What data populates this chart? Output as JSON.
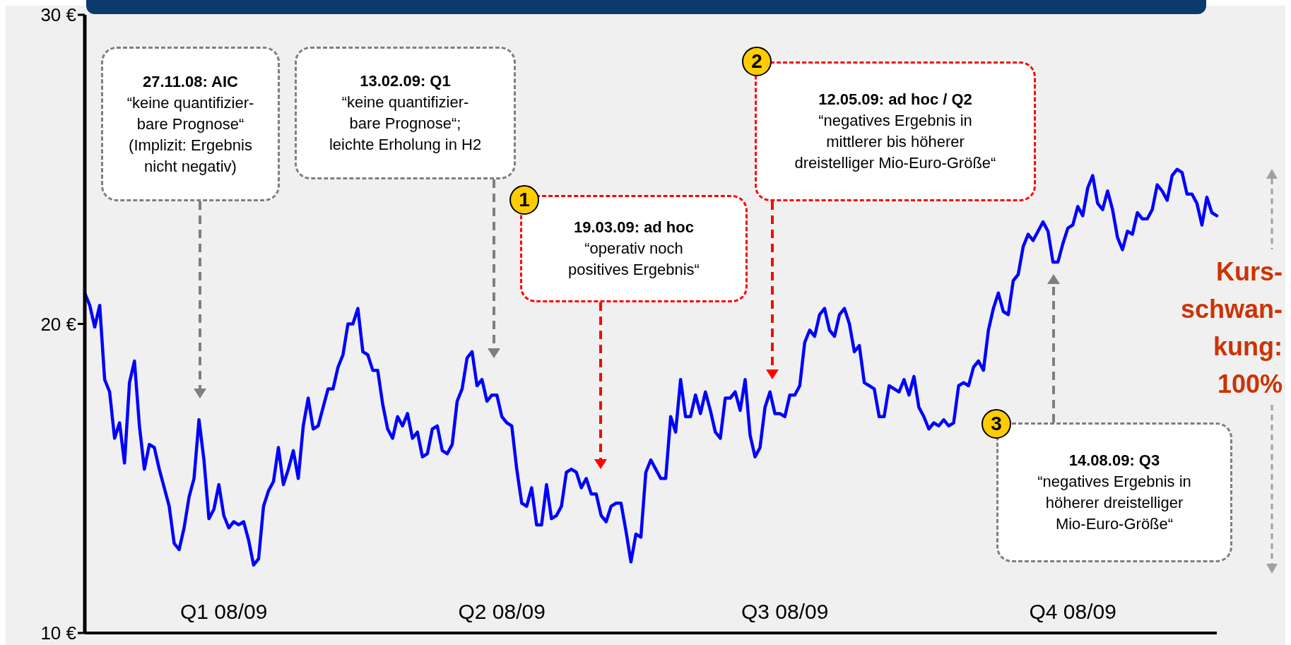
{
  "chart_data": {
    "type": "line",
    "categories": [
      null,
      null,
      null,
      null,
      null,
      null,
      null,
      null,
      null,
      null,
      null,
      null,
      null,
      null,
      null,
      null,
      null,
      null,
      null,
      null,
      null,
      null,
      null,
      null,
      null,
      null,
      null,
      null,
      "Q1 08/09",
      null,
      null,
      null,
      null,
      null,
      null,
      null,
      null,
      null,
      null,
      null,
      null,
      null,
      null,
      null,
      null,
      null,
      null,
      null,
      null,
      null,
      null,
      null,
      null,
      null,
      null,
      null,
      null,
      null,
      null,
      null,
      null,
      null,
      null,
      null,
      null,
      null,
      null,
      null,
      null,
      null,
      null,
      null,
      null,
      null,
      null,
      null,
      null,
      null,
      null,
      null,
      null,
      null,
      null,
      null,
      "Q2 08/09",
      null,
      null,
      null,
      null,
      null,
      null,
      null,
      null,
      null,
      null,
      null,
      null,
      null,
      null,
      null,
      null,
      null,
      null,
      null,
      null,
      null,
      null,
      null,
      null,
      null,
      null,
      null,
      null,
      null,
      null,
      null,
      null,
      null,
      null,
      null,
      null,
      null,
      null,
      null,
      null,
      null,
      null,
      null,
      null,
      null,
      null,
      null,
      null,
      null,
      null,
      null,
      null,
      null,
      null,
      null,
      null,
      "Q3 08/09",
      null,
      null,
      null,
      null,
      null,
      null,
      null,
      null,
      null,
      null,
      null,
      null,
      null,
      null,
      null,
      null,
      null,
      null,
      null,
      null,
      null,
      null,
      null,
      null,
      null,
      null,
      null,
      null,
      null,
      null,
      null,
      null,
      null,
      null,
      null,
      null,
      null,
      null,
      null,
      null,
      null,
      null,
      null,
      null,
      null,
      null,
      null,
      null,
      null,
      null,
      null,
      null,
      null,
      null,
      null,
      null,
      null,
      "Q4 08/09",
      null,
      null,
      null,
      null,
      null,
      null,
      null,
      null,
      null,
      null,
      null,
      null,
      null,
      null,
      null,
      null,
      null,
      null,
      null,
      null,
      null,
      null,
      null,
      null,
      null,
      null,
      null,
      null,
      null
    ],
    "series": [
      {
        "color": "#0000ff",
        "values": [
          21.0,
          20.6,
          19.9,
          20.6,
          18.2,
          17.8,
          16.3,
          16.8,
          15.5,
          18.1,
          18.8,
          16.7,
          15.3,
          16.1,
          16.0,
          15.3,
          14.7,
          14.1,
          12.9,
          12.7,
          13.4,
          14.4,
          15.0,
          16.9,
          15.6,
          13.7,
          14.0,
          14.8,
          13.8,
          13.4,
          13.6,
          13.5,
          13.6,
          13.0,
          12.2,
          12.4,
          14.1,
          14.6,
          14.9,
          16.0,
          14.8,
          15.3,
          15.9,
          15.0,
          16.7,
          17.6,
          16.6,
          16.7,
          17.3,
          17.9,
          17.9,
          18.6,
          19.0,
          20.0,
          20.0,
          20.5,
          19.1,
          19.0,
          18.5,
          18.5,
          17.4,
          16.6,
          16.3,
          17.0,
          16.7,
          17.1,
          16.3,
          16.5,
          15.7,
          15.8,
          16.6,
          16.7,
          15.9,
          15.8,
          16.1,
          17.5,
          17.9,
          18.9,
          19.1,
          18.0,
          18.2,
          17.5,
          17.7,
          17.7,
          17.0,
          16.8,
          16.7,
          15.3,
          14.2,
          14.1,
          14.7,
          13.5,
          13.5,
          14.8,
          13.7,
          13.8,
          14.1,
          15.2,
          15.3,
          15.2,
          14.7,
          15.0,
          14.5,
          14.5,
          13.8,
          13.6,
          14.1,
          14.2,
          14.2,
          13.3,
          12.3,
          13.2,
          13.1,
          15.2,
          15.6,
          15.3,
          15.0,
          15.0,
          17.0,
          16.5,
          18.2,
          17.0,
          17.0,
          17.7,
          17.1,
          17.8,
          17.2,
          16.5,
          16.3,
          17.6,
          17.6,
          17.8,
          17.2,
          18.2,
          16.4,
          15.7,
          16.0,
          17.3,
          17.8,
          17.1,
          17.1,
          17.0,
          17.7,
          17.7,
          18.0,
          19.4,
          19.8,
          19.6,
          20.3,
          20.5,
          19.8,
          19.6,
          20.3,
          20.5,
          20.0,
          19.1,
          19.3,
          18.1,
          18.0,
          17.9,
          17.0,
          17.0,
          18.0,
          17.9,
          17.8,
          18.2,
          17.7,
          18.3,
          17.3,
          17.0,
          16.6,
          16.8,
          16.7,
          16.9,
          16.7,
          16.8,
          18.0,
          18.1,
          18.0,
          18.6,
          18.8,
          18.5,
          19.8,
          20.5,
          21.0,
          20.4,
          20.3,
          21.4,
          21.6,
          22.5,
          22.9,
          22.7,
          23.0,
          23.3,
          23.0,
          22.0,
          22.0,
          22.6,
          23.1,
          23.2,
          23.8,
          23.5,
          24.4,
          24.8,
          23.9,
          23.7,
          24.3,
          23.7,
          22.8,
          22.4,
          23.0,
          22.9,
          23.6,
          23.4,
          23.4,
          23.7,
          24.5,
          24.3,
          24.0,
          24.8,
          25.0,
          24.9,
          24.2,
          24.2,
          23.9,
          23.2,
          24.1,
          23.6,
          23.5
        ]
      }
    ],
    "ylim": [
      10,
      30
    ],
    "yticks": [
      {
        "value": 10,
        "label": "10 €"
      },
      {
        "value": 20,
        "label": "20 €"
      },
      {
        "value": 30,
        "label": "30 €"
      }
    ],
    "marker": "none",
    "annotations": [
      "27.11.08: AIC\n“keine quantifizier-\nbare Prognose“\n(Implizit: Ergebnis\nnicht negativ)",
      "13.02.09: Q1\n“keine quantifizier-\nbare Prognose“;\nleichte Erholung in H2",
      "19.03.09: ad hoc\n“operativ noch\npositives Ergebnis“",
      "12.05.09: ad hoc / Q2\n“negatives Ergebnis in\nmittlerer bis höherer\ndreistelliger Mio-Euro-Größe“",
      "14.08.09: Q3\n“negatives Ergebnis in\nhöherer dreistelliger\nMio-Euro-Größe“",
      "1",
      "2",
      "3",
      "Kurs-\nschwan-\nkung:\n100%"
    ]
  }
}
